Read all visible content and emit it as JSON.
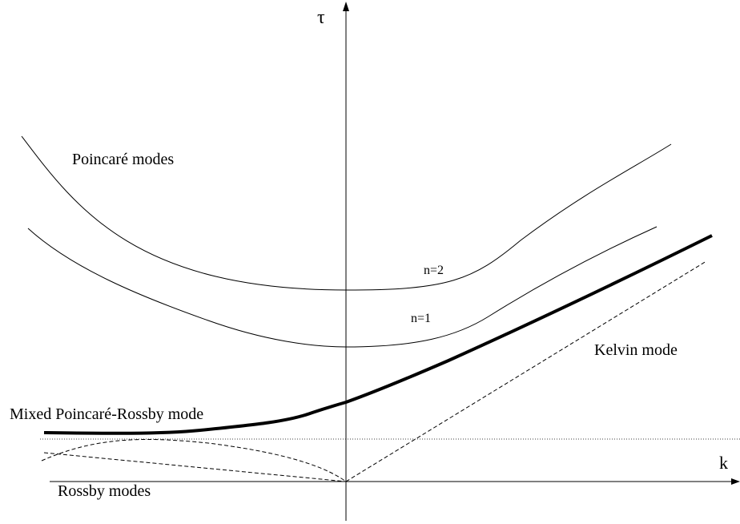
{
  "axes": {
    "y_label": "τ",
    "x_label": "k"
  },
  "labels": {
    "poincare_modes": "Poincaré modes",
    "n2": "n=2",
    "n1": "n=1",
    "kelvin_mode": "Kelvin mode",
    "mixed_mode": "Mixed Poincaré-Rossby mode",
    "rossby_modes": "Rossby modes"
  },
  "colors": {
    "stroke": "#000000",
    "background": "#ffffff"
  }
}
